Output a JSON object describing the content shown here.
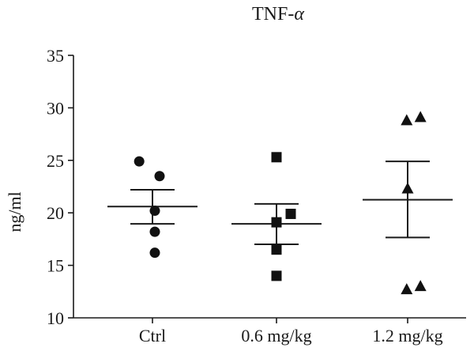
{
  "chart_data": {
    "type": "scatter",
    "title_main": "TNF-",
    "title_greek": "α",
    "ylabel": "ng/ml",
    "xlabel": "",
    "ylim": [
      10,
      35
    ],
    "yticks": [
      10,
      15,
      20,
      25,
      30,
      35
    ],
    "grid": false,
    "categories": [
      "Ctrl",
      "0.6 mg/kg",
      "1.2 mg/kg"
    ],
    "series": [
      {
        "category": "Ctrl",
        "marker": "circle",
        "points": [
          {
            "offset": -0.28,
            "y": 24.9
          },
          {
            "offset": 0.15,
            "y": 23.5
          },
          {
            "offset": 0.05,
            "y": 20.2
          },
          {
            "offset": 0.05,
            "y": 18.2
          },
          {
            "offset": 0.05,
            "y": 16.2
          }
        ],
        "mean": 20.6,
        "sem_upper": 22.2,
        "sem_lower": 18.95
      },
      {
        "category": "0.6 mg/kg",
        "marker": "square",
        "points": [
          {
            "offset": 0.0,
            "y": 25.3
          },
          {
            "offset": 0.3,
            "y": 19.9
          },
          {
            "offset": 0.0,
            "y": 19.1
          },
          {
            "offset": 0.0,
            "y": 16.5
          },
          {
            "offset": 0.0,
            "y": 14.0
          }
        ],
        "mean": 18.95,
        "sem_upper": 20.85,
        "sem_lower": 17.0
      },
      {
        "category": "1.2 mg/kg",
        "marker": "triangle",
        "points": [
          {
            "offset": -0.02,
            "y": 28.8
          },
          {
            "offset": 0.27,
            "y": 29.1
          },
          {
            "offset": 0.0,
            "y": 22.3
          },
          {
            "offset": -0.02,
            "y": 12.7
          },
          {
            "offset": 0.27,
            "y": 13.0
          }
        ],
        "mean": 21.25,
        "sem_upper": 24.9,
        "sem_lower": 17.65
      }
    ]
  }
}
